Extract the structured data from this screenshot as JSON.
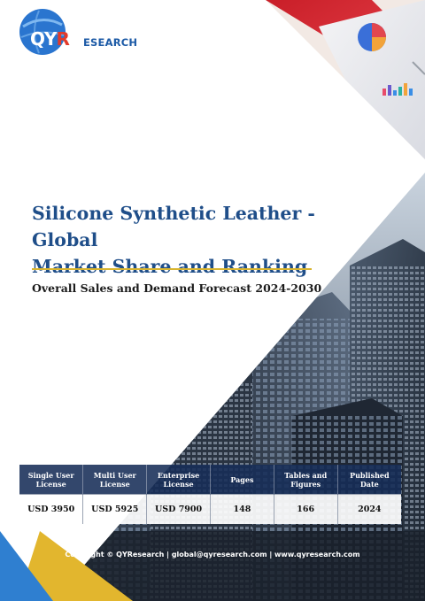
{
  "brand": {
    "logo_letters": "QY",
    "logo_accent_letter": "R",
    "logo_word": "ESEARCH"
  },
  "report": {
    "title_line1": "Silicone Synthetic Leather - Global",
    "title_line2": "Market Share and Ranking",
    "subtitle": "Overall Sales and Demand Forecast 2024-2030"
  },
  "pricing_table": {
    "headers": {
      "single_l1": "Single User",
      "single_l2": "License",
      "multi_l1": "Multi User",
      "multi_l2": "License",
      "enterprise_l1": "Enterprise",
      "enterprise_l2": "License",
      "pages": "Pages",
      "tables_l1": "Tables and",
      "tables_l2": "Figures",
      "published_l1": "Published",
      "published_l2": "Date"
    },
    "values": {
      "single": "USD 3950",
      "multi": "USD 5925",
      "enterprise": "USD 7900",
      "pages": "148",
      "tables": "166",
      "published": "2024"
    }
  },
  "footer": {
    "text": "Copyright © QYResearch | global@qyresearch.com | www.qyresearch.com"
  },
  "colors": {
    "brand_blue": "#1c5aa6",
    "title_blue": "#1f4e89",
    "accent_gold": "#d8b530",
    "accent_red": "#e23a2a",
    "table_header": "#172e58"
  },
  "icons": {
    "logo": "globe-logo-icon",
    "chart_papers": "chart-papers-icon",
    "buildings": "skyscraper-photo"
  }
}
